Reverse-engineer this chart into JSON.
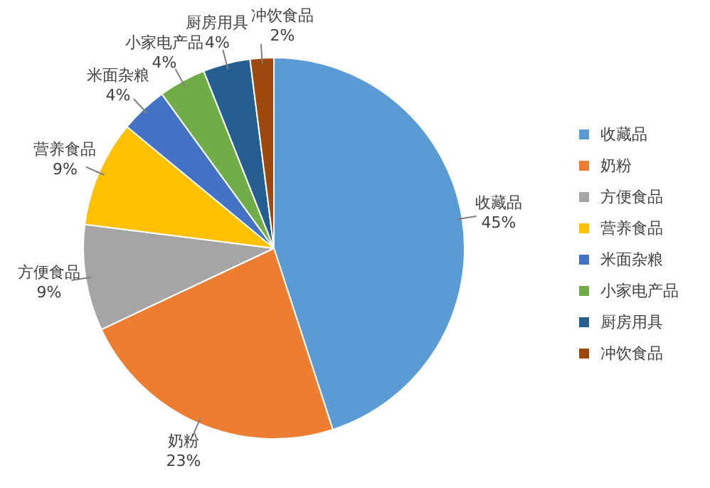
{
  "chart_data": {
    "type": "pie",
    "categories": [
      "收藏品",
      "奶粉",
      "方便食品",
      "营养食品",
      "米面杂粮",
      "小家电产品",
      "厨房用具",
      "冲饮食品"
    ],
    "values": [
      45,
      23,
      9,
      9,
      4,
      4,
      4,
      2
    ],
    "value_labels": [
      "45%",
      "23%",
      "9%",
      "9%",
      "4%",
      "4%",
      "4%",
      "2%"
    ],
    "colors": [
      "#5b9bd5",
      "#ed7d31",
      "#a5a5a5",
      "#ffc000",
      "#4472c4",
      "#70ad47",
      "#255e91",
      "#9e480e"
    ],
    "legend": "right"
  }
}
